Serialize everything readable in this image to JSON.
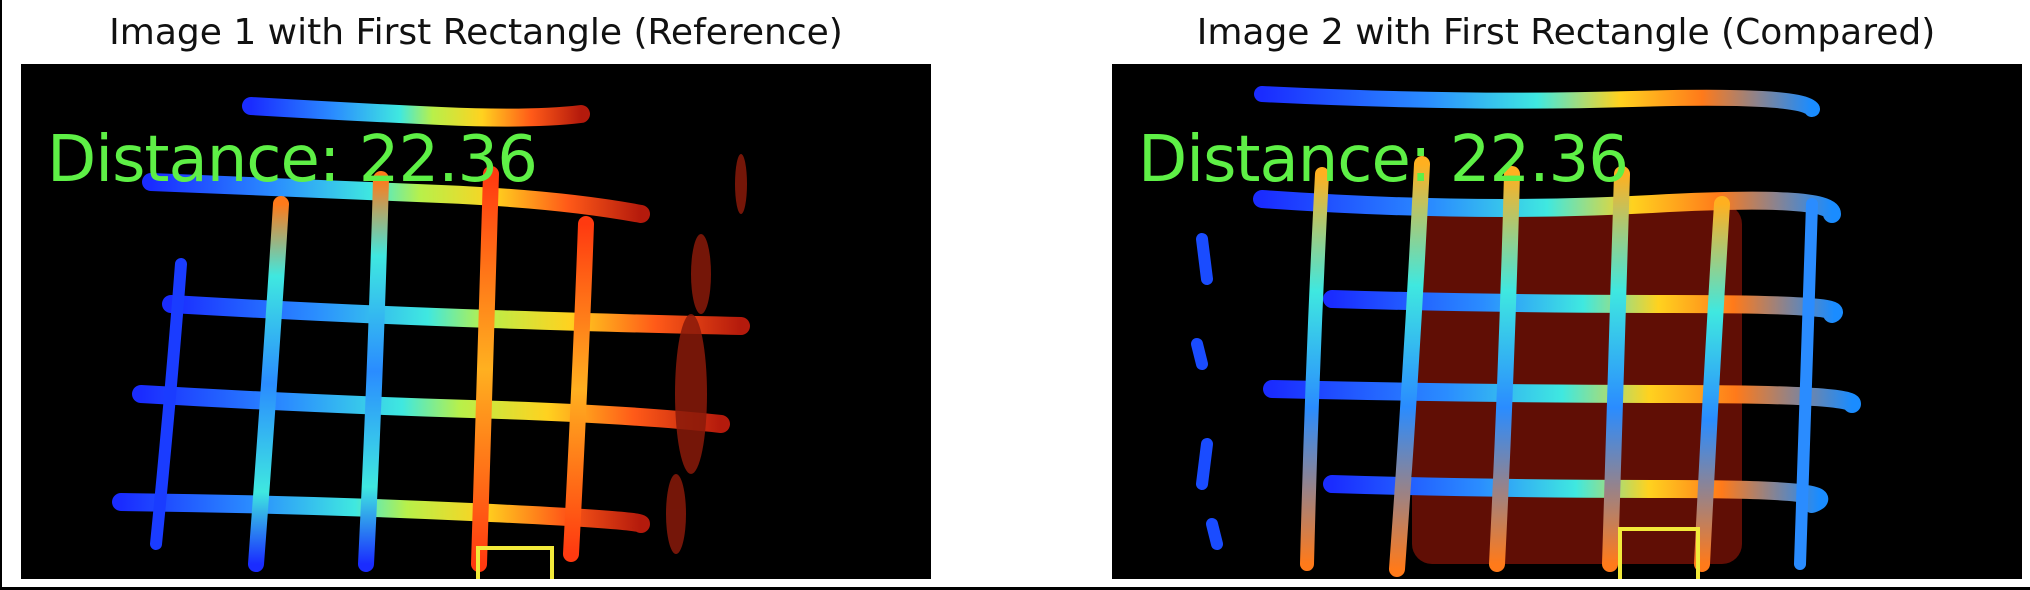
{
  "figure": {
    "panels": [
      {
        "title": "Image 1 with First Rectangle (Reference)",
        "overlay_text": "Distance: 22.36",
        "rectangle_color": "#f2ea3a"
      },
      {
        "title": "Image 2 with First Rectangle (Compared)",
        "overlay_text": "Distance: 22.36",
        "rectangle_color": "#f2ea3a"
      }
    ],
    "colors": {
      "background": "#000000",
      "text_overlay": "#5ef046",
      "colormap": "jet"
    }
  }
}
